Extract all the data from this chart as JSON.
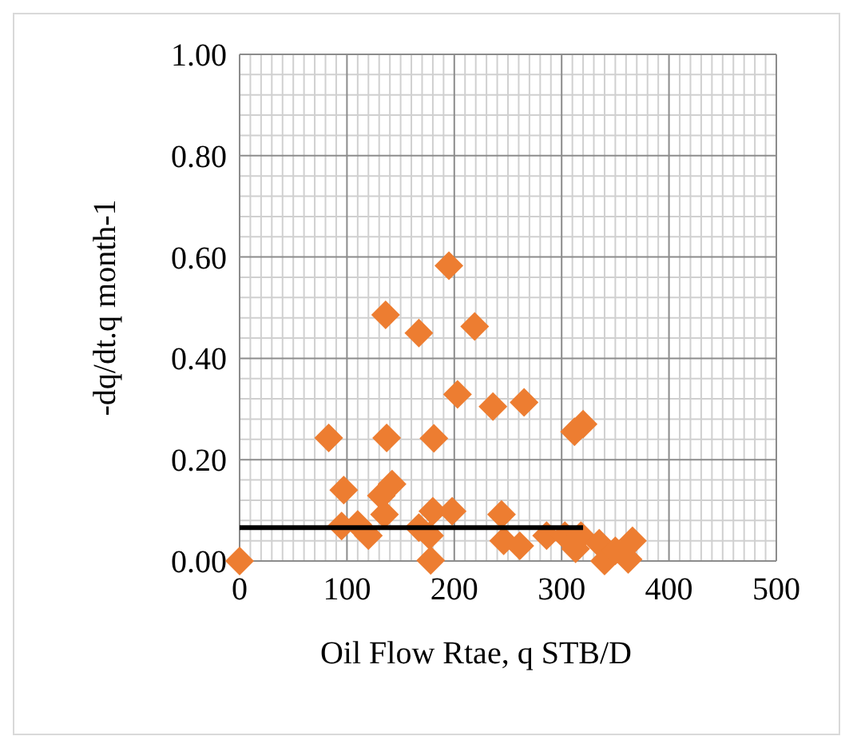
{
  "chart_data": {
    "type": "scatter",
    "xlabel": "Oil Flow Rtae, q STB/D",
    "ylabel": "-dq/dt.q month-1",
    "xlim": [
      0,
      500
    ],
    "ylim": [
      0,
      1
    ],
    "xticks": [
      0,
      100,
      200,
      300,
      400,
      500
    ],
    "yticks": [
      {
        "value": 0,
        "label": "0.00"
      },
      {
        "value": 0.2,
        "label": "0.20"
      },
      {
        "value": 0.4,
        "label": "0.40"
      },
      {
        "value": 0.6,
        "label": "0.60"
      },
      {
        "value": 0.8,
        "label": "0.80"
      },
      {
        "value": 1,
        "label": "1.00"
      }
    ],
    "grid": true,
    "marker": "diamond",
    "series": [
      {
        "color": "#ed7d31",
        "x": [
          0,
          83,
          97,
          95,
          110,
          120,
          132,
          135,
          137,
          136,
          142,
          167,
          167,
          177,
          178,
          180,
          181,
          195,
          198,
          203,
          219,
          236,
          244,
          246,
          261,
          265,
          286,
          303,
          313,
          312,
          318,
          320,
          335,
          340,
          350,
          362,
          366
        ],
        "values": [
          0,
          0.243,
          0.14,
          0.069,
          0.072,
          0.05,
          0.129,
          0.092,
          0.243,
          0.486,
          0.152,
          0.45,
          0.066,
          0.05,
          0.001,
          0.098,
          0.242,
          0.583,
          0.098,
          0.329,
          0.463,
          0.305,
          0.092,
          0.04,
          0.03,
          0.313,
          0.05,
          0.05,
          0.024,
          0.255,
          0.05,
          0.27,
          0.035,
          0.0,
          0.02,
          0.003,
          0.04
        ]
      },
      {
        "type": "line",
        "color": "#000000",
        "marker": "none",
        "x": [
          0,
          320
        ],
        "values": [
          0.066,
          0.066
        ]
      }
    ]
  }
}
